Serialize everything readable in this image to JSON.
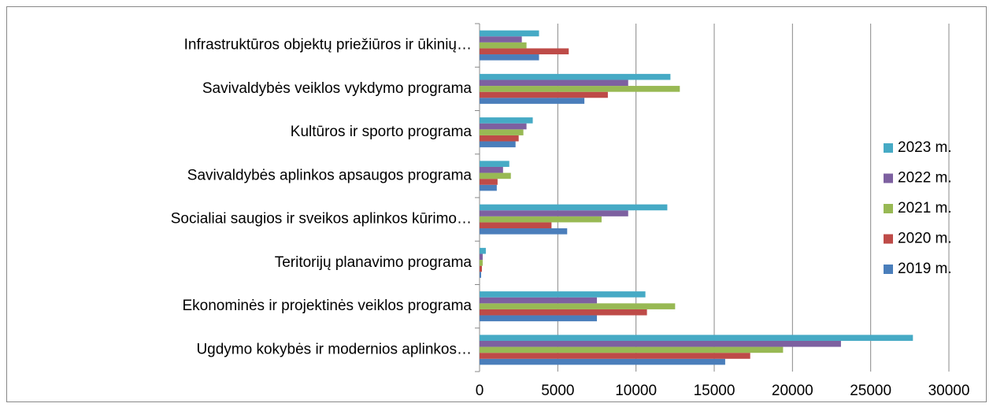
{
  "chart_data": {
    "type": "hbar",
    "categories": [
      "Infrastruktūros objektų priežiūros ir ūkinių…",
      "Savivaldybės veiklos vykdymo programa",
      "Kultūros ir sporto programa",
      "Savivaldybės aplinkos apsaugos  programa",
      "Socialiai saugios ir sveikos aplinkos kūrimo…",
      "Teritorijų planavimo programa",
      "Ekonominės ir projektinės veiklos programa",
      "Ugdymo kokybės ir modernios aplinkos…"
    ],
    "series": [
      {
        "name": "2019 m.",
        "color": "#4a7ebb",
        "values": [
          3800,
          6700,
          2300,
          1100,
          5600,
          100,
          7500,
          15700
        ]
      },
      {
        "name": "2020 m.",
        "color": "#be4b48",
        "values": [
          5700,
          8200,
          2500,
          1150,
          4600,
          150,
          10700,
          17300
        ]
      },
      {
        "name": "2021 m.",
        "color": "#98b954",
        "values": [
          3000,
          12800,
          2800,
          2000,
          7800,
          200,
          12500,
          19400
        ]
      },
      {
        "name": "2022 m.",
        "color": "#7d60a0",
        "values": [
          2700,
          9500,
          3000,
          1500,
          9500,
          200,
          7500,
          23100
        ]
      },
      {
        "name": "2023 m.",
        "color": "#46aac5",
        "values": [
          3800,
          12200,
          3400,
          1900,
          12000,
          400,
          10600,
          27700
        ]
      }
    ],
    "xlim": [
      0,
      30000
    ],
    "xticks": [
      0,
      5000,
      10000,
      15000,
      20000,
      25000,
      30000
    ],
    "grid": true,
    "legend": "right"
  }
}
